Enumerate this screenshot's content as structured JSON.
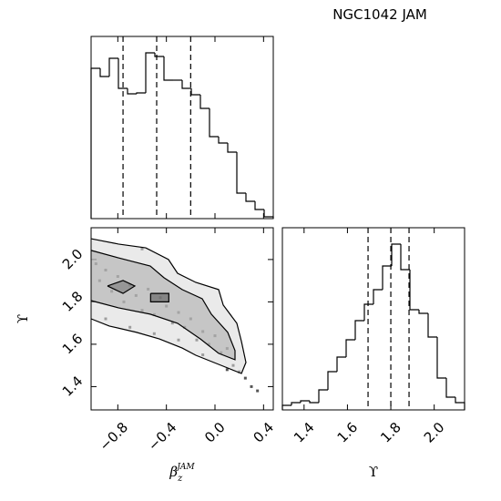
{
  "chart_data": [
    {
      "type": "histogram",
      "panel": "top",
      "bins": [
        -1.02,
        -0.945,
        -0.87,
        -0.795,
        -0.72,
        -0.645,
        -0.57,
        -0.495,
        -0.42,
        -0.345,
        -0.27,
        -0.195,
        -0.12,
        -0.045,
        0.03,
        0.105,
        0.18,
        0.255,
        0.33,
        0.405,
        0.48
      ],
      "values": [
        165,
        156,
        176,
        143,
        137,
        138,
        182,
        178,
        152,
        152,
        143,
        136,
        121,
        90,
        83,
        73,
        28,
        19,
        10,
        2
      ],
      "xlim": [
        -1.02,
        0.48
      ],
      "ylim": [
        0,
        200
      ],
      "xticks": [
        -0.8,
        -0.4,
        0,
        0.4
      ],
      "quantiles": [
        -0.757,
        -0.48,
        -0.2
      ],
      "color": "#000000"
    },
    {
      "type": "scatter",
      "panel": "joint",
      "xlabel": {
        "text": "β",
        "sub": "z",
        "sup": "JAM"
      },
      "ylabel": "ϒ",
      "x": [
        -0.98,
        -0.95,
        -0.9,
        -0.85,
        -0.8,
        -0.75,
        -0.7,
        -0.65,
        -0.6,
        -0.55,
        -0.5,
        -0.45,
        -0.4,
        -0.35,
        -0.3,
        -0.25,
        -0.2,
        -0.15,
        -0.1,
        -0.05,
        0.0,
        0.05,
        0.1,
        0.15,
        0.2,
        0.25,
        0.3,
        0.35,
        -0.7,
        -0.5,
        -0.3,
        -0.1,
        0.1,
        -0.9,
        -0.6
      ],
      "y": [
        1.98,
        1.9,
        1.95,
        1.85,
        1.92,
        1.8,
        1.88,
        1.83,
        1.76,
        1.86,
        1.74,
        1.82,
        1.78,
        1.7,
        1.75,
        1.68,
        1.72,
        1.62,
        1.66,
        1.6,
        1.64,
        1.56,
        1.58,
        1.5,
        1.47,
        1.44,
        1.4,
        1.38,
        1.68,
        1.65,
        1.62,
        1.55,
        1.48,
        1.72,
        2.05
      ],
      "contours": [
        {
          "x": [
            -1.02,
            -0.795,
            -0.57,
            -0.383,
            -0.308,
            -0.158,
            0.03,
            0.068,
            0.18,
            0.218,
            0.255,
            0.218,
            0.03,
            -0.158,
            -0.27,
            -0.458,
            -0.645,
            -0.87,
            -1.02
          ],
          "y": [
            2.098,
            2.073,
            2.055,
            2.0,
            1.935,
            1.892,
            1.858,
            1.785,
            1.699,
            1.613,
            1.514,
            1.462,
            1.505,
            1.548,
            1.582,
            1.625,
            1.656,
            1.686,
            1.72
          ]
        },
        {
          "x": [
            -1.02,
            -0.795,
            -0.533,
            -0.42,
            -0.27,
            -0.105,
            -0.03,
            0.105,
            0.165,
            0.165,
            0.03,
            -0.12,
            -0.308,
            -0.533,
            -0.795,
            -1.02
          ],
          "y": [
            2.043,
            2.008,
            1.969,
            1.914,
            1.858,
            1.815,
            1.742,
            1.656,
            1.57,
            1.527,
            1.557,
            1.625,
            1.699,
            1.742,
            1.772,
            1.806
          ]
        },
        {
          "x": [
            -0.885,
            -0.757,
            -0.66,
            -0.757,
            -0.885
          ],
          "y": [
            1.875,
            1.901,
            1.875,
            1.84,
            1.875
          ]
        },
        {
          "x": [
            -0.53,
            -0.38,
            -0.38,
            -0.53,
            -0.53
          ],
          "y": [
            1.84,
            1.84,
            1.8,
            1.8,
            1.84
          ]
        }
      ],
      "xlim": [
        -1.02,
        0.48
      ],
      "ylim": [
        1.29,
        2.15
      ],
      "xticks": [
        {
          "value": -0.8,
          "label": "−0.8"
        },
        {
          "value": -0.4,
          "label": "−0.4"
        },
        {
          "value": 0,
          "label": "0.0"
        },
        0.4
      ],
      "yticks": [
        1.4,
        1.6,
        1.8,
        {
          "value": 2.0,
          "label": "2.0"
        }
      ],
      "color": "#555555"
    },
    {
      "type": "histogram",
      "panel": "right",
      "title": "NGC1042 JAM",
      "xlabel": "ϒ",
      "bins": [
        1.3,
        1.342,
        1.384,
        1.426,
        1.468,
        1.51,
        1.552,
        1.594,
        1.636,
        1.678,
        1.72,
        1.762,
        1.804,
        1.846,
        1.888,
        1.93,
        1.972,
        2.014,
        2.056,
        2.098,
        2.14
      ],
      "values": [
        5,
        8,
        10,
        8,
        22,
        42,
        58,
        77,
        98,
        116,
        132,
        158,
        182,
        154,
        110,
        106,
        80,
        35,
        14,
        8
      ],
      "xlim": [
        1.3,
        2.14
      ],
      "ylim": [
        0,
        200
      ],
      "xticks": [
        1.4,
        1.6,
        1.8,
        {
          "value": 2.0,
          "label": "2.0"
        }
      ],
      "quantiles": [
        1.695,
        1.8,
        1.884
      ],
      "color": "#000000"
    }
  ]
}
